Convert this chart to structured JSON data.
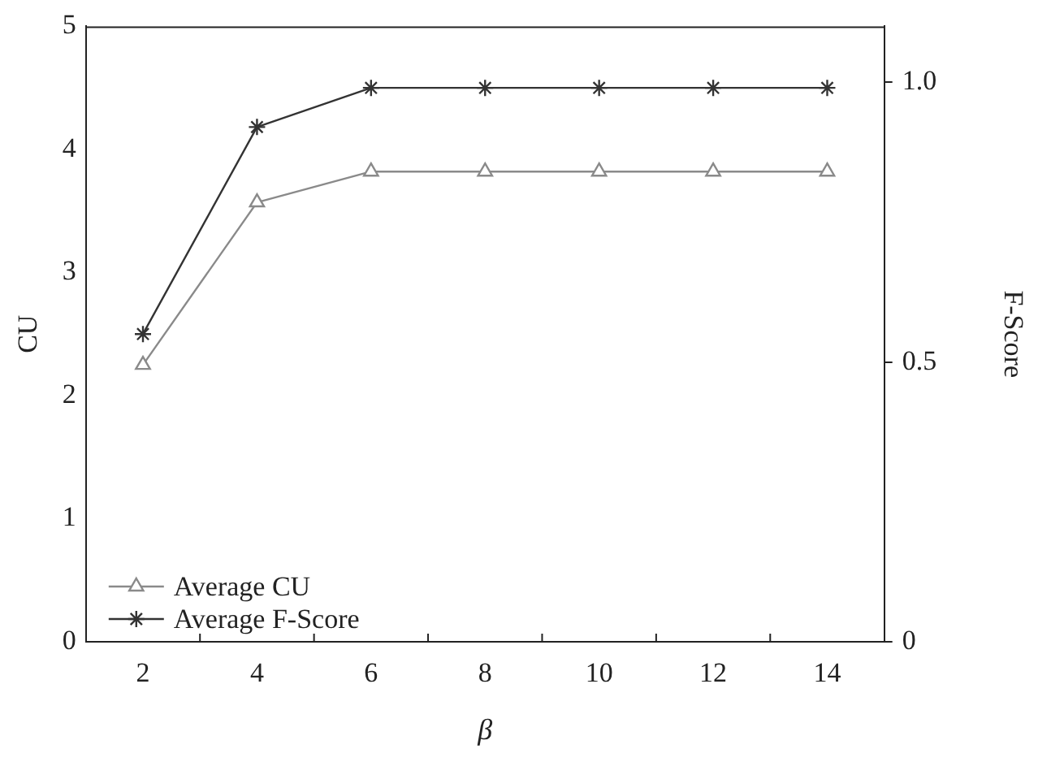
{
  "chart_data": {
    "type": "line",
    "xlabel": "β",
    "ylabel": "CU",
    "y2label": "F-Score",
    "categories": [
      "2",
      "4",
      "6",
      "8",
      "10",
      "12",
      "14"
    ],
    "ylim": [
      0,
      5
    ],
    "yticks": [
      0,
      1,
      2,
      3,
      4,
      5
    ],
    "y2lim": [
      0,
      1.1
    ],
    "y2ticks": [
      0,
      {
        "value": 0.5,
        "label": "0.5"
      },
      {
        "value": 1,
        "label": "1.0"
      }
    ],
    "series": [
      {
        "name": "Average CU",
        "color": "#8a8a8a",
        "marker": "triangle",
        "values": [
          2.25,
          3.57,
          3.82,
          3.82,
          3.82,
          3.82,
          3.82
        ]
      },
      {
        "name": "Average F-Score",
        "color": "#333333",
        "marker": "cross",
        "axis": "y2",
        "values": [
          0.55,
          0.92,
          0.99,
          0.99,
          0.99,
          0.99,
          0.99
        ]
      }
    ],
    "grid": false,
    "legend": "bottom left",
    "line_style": "solid"
  }
}
